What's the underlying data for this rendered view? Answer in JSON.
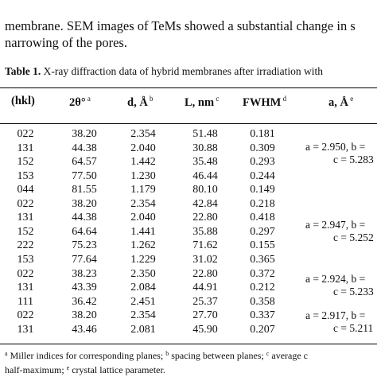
{
  "intro": {
    "line1": "membrane. SEM images of TeMs showed a substantial change in s",
    "line2": "narrowing of the pores."
  },
  "caption": {
    "label": "Table 1.",
    "text": " X-ray diffraction data of hybrid membranes after irradiation with"
  },
  "table": {
    "headers": [
      {
        "text": "(hkl)",
        "sup": ""
      },
      {
        "text": "2θ°",
        "sup": "a"
      },
      {
        "text": "d, Å",
        "sup": "b"
      },
      {
        "text": "L, nm",
        "sup": "c"
      },
      {
        "text": "FWHM",
        "sup": "d"
      },
      {
        "text": "a, Å",
        "sup": "e"
      }
    ],
    "rows": [
      [
        "022",
        "38.20",
        "2.354",
        "51.48",
        "0.181"
      ],
      [
        "131",
        "44.38",
        "2.040",
        "30.88",
        "0.309"
      ],
      [
        "152",
        "64.57",
        "1.442",
        "35.48",
        "0.293"
      ],
      [
        "153",
        "77.50",
        "1.230",
        "46.44",
        "0.244"
      ],
      [
        "044",
        "81.55",
        "1.179",
        "80.10",
        "0.149"
      ],
      [
        "022",
        "38.20",
        "2.354",
        "42.84",
        "0.218"
      ],
      [
        "131",
        "44.38",
        "2.040",
        "22.80",
        "0.418"
      ],
      [
        "152",
        "64.64",
        "1.441",
        "35.88",
        "0.297"
      ],
      [
        "222",
        "75.23",
        "1.262",
        "71.62",
        "0.155"
      ],
      [
        "153",
        "77.64",
        "1.229",
        "31.02",
        "0.365"
      ],
      [
        "022",
        "38.23",
        "2.350",
        "22.80",
        "0.372"
      ],
      [
        "131",
        "43.39",
        "2.084",
        "44.91",
        "0.212"
      ],
      [
        "111",
        "36.42",
        "2.451",
        "25.37",
        "0.358"
      ],
      [
        "022",
        "38.20",
        "2.354",
        "27.70",
        "0.337"
      ],
      [
        "131",
        "43.46",
        "2.081",
        "45.90",
        "0.207"
      ]
    ],
    "lattice": [
      {
        "line1": "a = 2.950, b = ",
        "line2": "c = 5.283"
      },
      {
        "line1": "a = 2.947, b = ",
        "line2": "c = 5.252"
      },
      {
        "line1": "a = 2.924, b = ",
        "line2": "c = 5.233"
      },
      {
        "line1": "a = 2.917, b = ",
        "line2": "c = 5.211"
      }
    ]
  },
  "footnote": {
    "a": "a",
    "t1": " Miller indices for corresponding planes; ",
    "b": "b",
    "t2": " spacing between planes; ",
    "c": "c",
    "t3": " average c",
    "line2": "half-maximum; ",
    "e": "e",
    "t4": " crystal lattice parameter."
  }
}
